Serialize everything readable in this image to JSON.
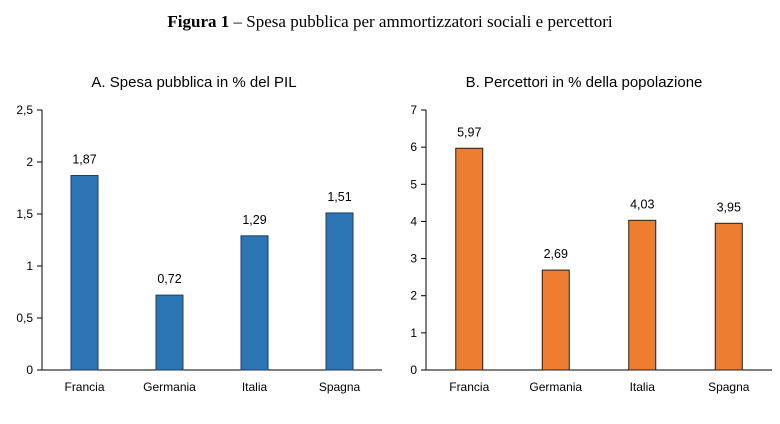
{
  "figure": {
    "label": "Figura 1",
    "separator": " – ",
    "title": "Spesa pubblica  per ammortizzatori  sociali  e percettori"
  },
  "chart_data": [
    {
      "type": "bar",
      "title": "A. Spesa pubblica in % del PIL",
      "categories": [
        "Francia",
        "Germania",
        "Italia",
        "Spagna"
      ],
      "values": [
        1.87,
        0.72,
        1.29,
        1.51
      ],
      "value_labels": [
        "1,87",
        "0,72",
        "1,29",
        "1,51"
      ],
      "ylim": [
        0,
        2.5
      ],
      "yticks": [
        0,
        0.5,
        1,
        1.5,
        2,
        2.5
      ],
      "ytick_labels": [
        "0",
        "0,5",
        "1",
        "1,5",
        "2",
        "2,5"
      ],
      "color": "#2E75B6",
      "edge_color": "#1F3864",
      "grid": false,
      "legend": "none"
    },
    {
      "type": "bar",
      "title": "B. Percettori in % della popolazione",
      "categories": [
        "Francia",
        "Germania",
        "Italia",
        "Spagna"
      ],
      "values": [
        5.97,
        2.69,
        4.03,
        3.95
      ],
      "value_labels": [
        "5,97",
        "2,69",
        "4,03",
        "3,95"
      ],
      "ylim": [
        0,
        7
      ],
      "yticks": [
        0,
        1,
        2,
        3,
        4,
        5,
        6,
        7
      ],
      "ytick_labels": [
        "0",
        "1",
        "2",
        "3",
        "4",
        "5",
        "6",
        "7"
      ],
      "color": "#ED7D31",
      "edge_color": "#1F1F1F",
      "grid": false,
      "legend": "none"
    }
  ]
}
